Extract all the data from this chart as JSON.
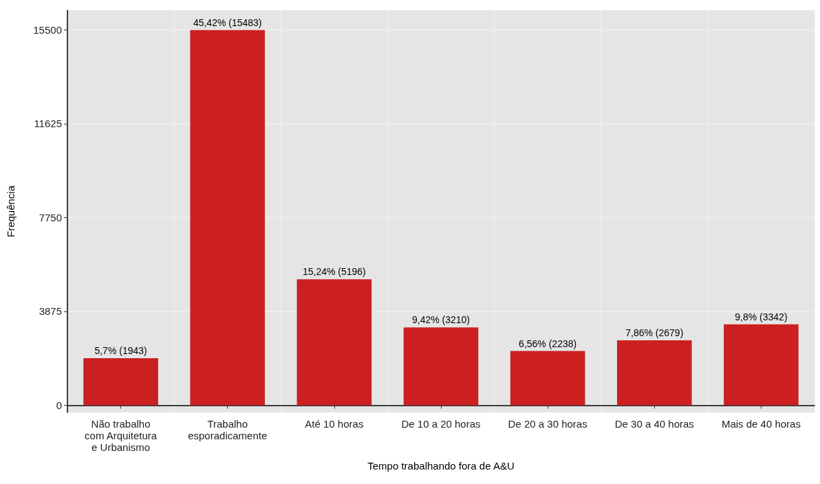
{
  "chart_data": {
    "type": "bar",
    "xlabel": "Tempo trabalhando fora de A&U",
    "ylabel": "Frequência",
    "categories": [
      "Não trabalho\ncom Arquitetura\ne Urbanismo",
      "Trabalho\nesporadicamente",
      "Até 10 horas",
      "De 10 a 20 horas",
      "De 20 a 30 horas",
      "De 30 a 40 horas",
      "Mais de 40 horas"
    ],
    "values": [
      1943,
      15483,
      5196,
      3210,
      2238,
      2679,
      3342
    ],
    "value_labels": [
      "5,7% (1943)",
      "45,42% (15483)",
      "15,24% (5196)",
      "9,42% (3210)",
      "6,56% (2238)",
      "7,86% (2679)",
      "9,8% (3342)"
    ],
    "color": "#cb1f20",
    "ylim": [
      -300,
      16300
    ],
    "yticks": [
      0,
      3875,
      7750,
      11625,
      15500
    ],
    "grid": true
  }
}
